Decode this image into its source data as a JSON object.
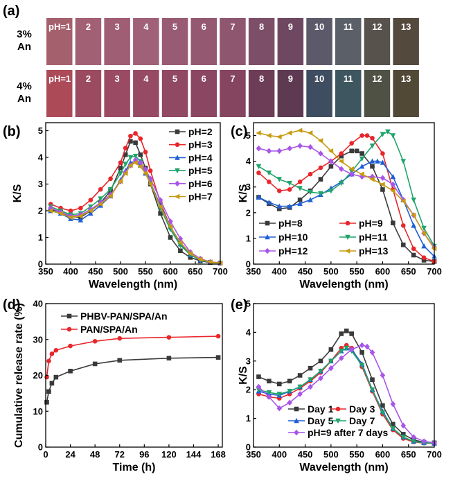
{
  "panel_a": {
    "label": "(a)",
    "rows": [
      {
        "label_line1": "3%",
        "label_line2": "An",
        "cells": [
          "pH=1",
          "2",
          "3",
          "4",
          "5",
          "6",
          "7",
          "8",
          "9",
          "10",
          "11",
          "12",
          "13"
        ],
        "colors": [
          "#a5606e",
          "#a26074",
          "#9f5e74",
          "#a06078",
          "#995a73",
          "#945871",
          "#8f5670",
          "#7d4e67",
          "#6e4860",
          "#5c5a6a",
          "#5b6068",
          "#57524c",
          "#54493d"
        ]
      },
      {
        "label_line1": "4%",
        "label_line2": "An",
        "cells": [
          "pH=1",
          "2",
          "3",
          "4",
          "5",
          "6",
          "7",
          "8",
          "9",
          "10",
          "11",
          "12",
          "13"
        ],
        "colors": [
          "#ac4a57",
          "#9c4a5f",
          "#9a4a62",
          "#964a63",
          "#904863",
          "#8b4661",
          "#85445f",
          "#6d3d58",
          "#5d3a52",
          "#3f4d60",
          "#3e5660",
          "#4f5145",
          "#524836"
        ]
      }
    ]
  },
  "chart_data": [
    {
      "panel": "(b)",
      "type": "line",
      "xlabel": "Wavelength (nm)",
      "ylabel": "K/S",
      "xlim": [
        350,
        700
      ],
      "ylim": [
        0,
        5.3
      ],
      "xticks": [
        350,
        400,
        450,
        500,
        550,
        600,
        650,
        700
      ],
      "yticks": [
        0,
        1,
        2,
        3,
        4,
        5
      ],
      "legend_position": "top-right",
      "series": [
        {
          "name": "pH=2",
          "color": "#3a3a3a",
          "marker": "square",
          "x": [
            360,
            380,
            400,
            420,
            440,
            460,
            480,
            500,
            510,
            520,
            530,
            540,
            550,
            560,
            580,
            600,
            620,
            640,
            660,
            680,
            700
          ],
          "y": [
            2.05,
            1.95,
            1.78,
            1.75,
            2.0,
            2.3,
            2.75,
            3.6,
            4.1,
            4.6,
            4.55,
            4.1,
            3.6,
            3.0,
            1.9,
            1.0,
            0.5,
            0.25,
            0.12,
            0.06,
            0.04
          ]
        },
        {
          "name": "pH=3",
          "color": "#e8262b",
          "marker": "circle",
          "x": [
            360,
            380,
            400,
            420,
            440,
            460,
            480,
            500,
            510,
            520,
            530,
            540,
            550,
            560,
            580,
            600,
            620,
            640,
            660,
            680,
            700
          ],
          "y": [
            2.25,
            2.1,
            2.0,
            2.1,
            2.4,
            2.8,
            3.2,
            3.8,
            4.35,
            4.8,
            4.9,
            4.7,
            4.2,
            3.5,
            2.3,
            1.4,
            0.8,
            0.4,
            0.2,
            0.08,
            0.05
          ]
        },
        {
          "name": "pH=4",
          "color": "#1f5fd4",
          "marker": "triangle",
          "x": [
            360,
            380,
            400,
            420,
            440,
            460,
            480,
            500,
            510,
            520,
            530,
            540,
            550,
            560,
            580,
            600,
            620,
            640,
            660,
            680,
            700
          ],
          "y": [
            2.0,
            1.9,
            1.7,
            1.65,
            1.9,
            2.2,
            2.55,
            3.15,
            3.5,
            3.8,
            3.85,
            3.7,
            3.4,
            3.05,
            2.2,
            1.4,
            0.75,
            0.35,
            0.15,
            0.07,
            0.04
          ]
        },
        {
          "name": "pH=5",
          "color": "#1fa46a",
          "marker": "triangle-down",
          "x": [
            360,
            380,
            400,
            420,
            440,
            460,
            480,
            500,
            510,
            520,
            530,
            540,
            550,
            560,
            580,
            600,
            620,
            640,
            660,
            680,
            700
          ],
          "y": [
            2.15,
            2.0,
            1.85,
            1.9,
            2.15,
            2.45,
            2.8,
            3.4,
            3.75,
            4.0,
            4.05,
            3.85,
            3.5,
            3.05,
            2.1,
            1.3,
            0.7,
            0.35,
            0.15,
            0.07,
            0.04
          ]
        },
        {
          "name": "pH=6",
          "color": "#a855e8",
          "marker": "diamond",
          "x": [
            360,
            380,
            400,
            420,
            440,
            460,
            480,
            500,
            510,
            520,
            530,
            540,
            550,
            560,
            580,
            600,
            620,
            640,
            660,
            680,
            700
          ],
          "y": [
            2.1,
            1.95,
            1.8,
            1.85,
            2.05,
            2.3,
            2.6,
            3.1,
            3.45,
            3.7,
            3.9,
            3.8,
            3.55,
            3.2,
            2.4,
            1.6,
            0.95,
            0.45,
            0.2,
            0.08,
            0.04
          ]
        },
        {
          "name": "pH=7",
          "color": "#c89a10",
          "marker": "triangle-left",
          "x": [
            360,
            380,
            400,
            420,
            440,
            460,
            480,
            500,
            510,
            520,
            530,
            540,
            550,
            560,
            580,
            600,
            620,
            640,
            660,
            680,
            700
          ],
          "y": [
            2.0,
            1.9,
            1.75,
            1.8,
            2.0,
            2.25,
            2.55,
            3.1,
            3.4,
            3.7,
            3.8,
            3.65,
            3.4,
            3.0,
            2.15,
            1.4,
            0.8,
            0.4,
            0.18,
            0.08,
            0.04
          ]
        }
      ]
    },
    {
      "panel": "(c)",
      "type": "line",
      "xlabel": "Wavelength (nm)",
      "ylabel": "K/S",
      "xlim": [
        350,
        700
      ],
      "ylim": [
        0,
        5.5
      ],
      "xticks": [
        350,
        400,
        450,
        500,
        550,
        600,
        650,
        700
      ],
      "yticks": [
        0,
        1,
        2,
        3,
        4,
        5
      ],
      "legend_position": "bottom-left",
      "series": [
        {
          "name": "pH=8",
          "color": "#3a3a3a",
          "marker": "square",
          "x": [
            360,
            380,
            400,
            420,
            440,
            460,
            480,
            500,
            520,
            540,
            550,
            560,
            580,
            600,
            620,
            640,
            660,
            680,
            700
          ],
          "y": [
            2.6,
            2.35,
            2.15,
            2.2,
            2.5,
            2.85,
            3.3,
            3.8,
            4.2,
            4.4,
            4.4,
            4.3,
            3.8,
            2.9,
            1.6,
            0.75,
            0.35,
            0.15,
            0.1
          ]
        },
        {
          "name": "pH=9",
          "color": "#e8262b",
          "marker": "circle",
          "x": [
            360,
            380,
            400,
            420,
            440,
            460,
            480,
            500,
            520,
            540,
            560,
            570,
            580,
            600,
            620,
            640,
            660,
            680,
            700
          ],
          "y": [
            3.55,
            3.2,
            2.85,
            2.9,
            3.2,
            3.5,
            3.75,
            4.0,
            4.3,
            4.7,
            5.0,
            5.0,
            4.9,
            4.3,
            2.9,
            1.5,
            0.6,
            0.25,
            0.1
          ]
        },
        {
          "name": "pH=10",
          "color": "#1f5fd4",
          "marker": "triangle",
          "x": [
            360,
            380,
            400,
            420,
            440,
            460,
            480,
            500,
            520,
            540,
            560,
            580,
            590,
            600,
            620,
            640,
            660,
            680,
            700
          ],
          "y": [
            2.6,
            2.4,
            2.25,
            2.25,
            2.35,
            2.5,
            2.7,
            2.95,
            3.2,
            3.5,
            3.8,
            4.0,
            4.0,
            3.95,
            3.4,
            2.5,
            1.5,
            0.7,
            0.3
          ]
        },
        {
          "name": "pH=11",
          "color": "#1fa46a",
          "marker": "triangle-down",
          "x": [
            360,
            380,
            400,
            420,
            440,
            460,
            480,
            500,
            520,
            540,
            560,
            580,
            600,
            610,
            620,
            640,
            660,
            680,
            700
          ],
          "y": [
            3.8,
            3.55,
            3.3,
            3.15,
            2.95,
            2.8,
            2.75,
            2.85,
            3.15,
            3.6,
            4.1,
            4.6,
            5.05,
            5.15,
            5.0,
            4.0,
            2.5,
            1.4,
            0.7
          ]
        },
        {
          "name": "pH=12",
          "color": "#a855e8",
          "marker": "diamond",
          "x": [
            360,
            380,
            400,
            420,
            440,
            460,
            480,
            500,
            520,
            540,
            560,
            580,
            600,
            620,
            640,
            660,
            680,
            700
          ],
          "y": [
            4.5,
            4.4,
            4.4,
            4.5,
            4.6,
            4.55,
            4.3,
            4.0,
            3.7,
            3.5,
            3.4,
            3.4,
            3.35,
            3.1,
            2.5,
            1.9,
            1.2,
            0.65
          ]
        },
        {
          "name": "pH=13",
          "color": "#c89a10",
          "marker": "triangle-left",
          "x": [
            360,
            380,
            400,
            420,
            440,
            460,
            480,
            500,
            520,
            540,
            560,
            580,
            600,
            620,
            640,
            660,
            680,
            700
          ],
          "y": [
            5.1,
            5.0,
            4.95,
            5.1,
            5.2,
            5.1,
            4.8,
            4.4,
            4.0,
            3.7,
            3.5,
            3.3,
            3.1,
            2.85,
            2.45,
            1.9,
            1.2,
            0.6
          ]
        }
      ]
    },
    {
      "panel": "(d)",
      "type": "line",
      "xlabel": "Time (h)",
      "ylabel": "Cumulative release rate (%)",
      "xlim": [
        0,
        172
      ],
      "ylim": [
        0,
        40
      ],
      "xticks": [
        0,
        24,
        48,
        72,
        96,
        120,
        144,
        168
      ],
      "yticks": [
        0,
        10,
        20,
        30,
        40
      ],
      "legend_position": "top-left",
      "series": [
        {
          "name": "PHBV-PAN/SPA/An",
          "color": "#3a3a3a",
          "marker": "square",
          "x": [
            1,
            3,
            6,
            10,
            24,
            48,
            72,
            120,
            168
          ],
          "y": [
            12.5,
            15.5,
            17.8,
            19.5,
            21.2,
            23.2,
            24.2,
            24.8,
            25.0
          ]
        },
        {
          "name": "PAN/SPA/An",
          "color": "#e8262b",
          "marker": "circle",
          "x": [
            1,
            3,
            6,
            10,
            24,
            48,
            72,
            120,
            168
          ],
          "y": [
            19.5,
            24.0,
            26.0,
            27.0,
            28.2,
            29.5,
            30.3,
            30.6,
            30.9
          ]
        }
      ]
    },
    {
      "panel": "(e)",
      "type": "line",
      "xlabel": "Wavelength (nm)",
      "ylabel": "K/S",
      "xlim": [
        350,
        700
      ],
      "ylim": [
        0,
        5
      ],
      "xticks": [
        350,
        400,
        450,
        500,
        550,
        600,
        650,
        700
      ],
      "yticks": [
        0,
        1,
        2,
        3,
        4,
        5
      ],
      "legend_position": "bottom-left",
      "series": [
        {
          "name": "Day 1",
          "color": "#3a3a3a",
          "marker": "square",
          "x": [
            360,
            380,
            400,
            420,
            440,
            460,
            480,
            500,
            520,
            530,
            540,
            560,
            580,
            600,
            620,
            640,
            660,
            680,
            700
          ],
          "y": [
            2.45,
            2.3,
            2.2,
            2.3,
            2.5,
            2.75,
            3.0,
            3.4,
            3.95,
            4.05,
            3.95,
            3.3,
            2.35,
            1.45,
            0.8,
            0.45,
            0.25,
            0.17,
            0.15
          ]
        },
        {
          "name": "Day 3",
          "color": "#e8262b",
          "marker": "circle",
          "x": [
            360,
            380,
            400,
            420,
            440,
            460,
            480,
            500,
            520,
            530,
            540,
            560,
            580,
            600,
            620,
            640,
            660,
            680,
            700
          ],
          "y": [
            1.85,
            1.75,
            1.7,
            1.85,
            2.05,
            2.3,
            2.6,
            3.0,
            3.45,
            3.55,
            3.45,
            2.8,
            1.95,
            1.15,
            0.6,
            0.3,
            0.18,
            0.14,
            0.13
          ]
        },
        {
          "name": "Day 5",
          "color": "#1f5fd4",
          "marker": "triangle",
          "x": [
            360,
            380,
            400,
            420,
            440,
            460,
            480,
            500,
            520,
            530,
            540,
            560,
            580,
            600,
            620,
            640,
            660,
            680,
            700
          ],
          "y": [
            1.95,
            1.85,
            1.8,
            1.95,
            2.1,
            2.35,
            2.65,
            3.0,
            3.35,
            3.45,
            3.4,
            2.9,
            2.0,
            1.25,
            0.65,
            0.35,
            0.2,
            0.15,
            0.13
          ]
        },
        {
          "name": "Day 7",
          "color": "#1fa46a",
          "marker": "triangle-down",
          "x": [
            360,
            380,
            400,
            420,
            440,
            460,
            480,
            500,
            520,
            530,
            540,
            560,
            580,
            600,
            620,
            640,
            660,
            680,
            700
          ],
          "y": [
            2.0,
            1.9,
            1.85,
            1.95,
            2.1,
            2.35,
            2.65,
            3.0,
            3.35,
            3.45,
            3.35,
            2.85,
            2.0,
            1.2,
            0.65,
            0.35,
            0.2,
            0.15,
            0.13
          ]
        },
        {
          "name": "pH=9 after 7 days",
          "color": "#a855e8",
          "marker": "diamond",
          "x": [
            360,
            380,
            400,
            420,
            440,
            460,
            480,
            500,
            520,
            540,
            560,
            570,
            580,
            600,
            620,
            640,
            660,
            680,
            700
          ],
          "y": [
            2.1,
            1.75,
            1.35,
            1.55,
            1.85,
            2.1,
            2.4,
            2.75,
            3.1,
            3.4,
            3.55,
            3.5,
            3.3,
            2.5,
            1.5,
            0.75,
            0.35,
            0.2,
            0.15
          ]
        }
      ]
    }
  ]
}
